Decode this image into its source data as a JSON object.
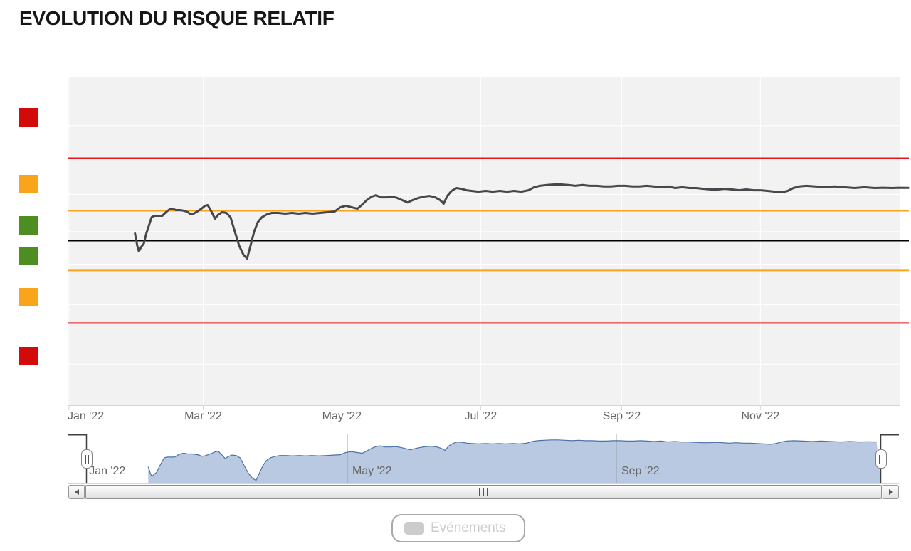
{
  "page": {
    "title": "EVOLUTION DU RISQUE RELATIF"
  },
  "legend": {
    "label": "Evénements"
  },
  "zone_indicators": [
    {
      "name": "very-high-risk-upper",
      "color": "#d20a0a"
    },
    {
      "name": "high-risk-upper",
      "color": "#f9a51b"
    },
    {
      "name": "moderate-risk-upper",
      "color": "#4e8d22"
    },
    {
      "name": "moderate-risk-lower",
      "color": "#4e8d22"
    },
    {
      "name": "high-risk-lower",
      "color": "#f9a51b"
    },
    {
      "name": "very-high-risk-lower",
      "color": "#d20a0a"
    }
  ],
  "chart_data": {
    "type": "line",
    "title": "EVOLUTION DU RISQUE RELATIF",
    "xlabel": "",
    "ylabel": "",
    "x_axis": {
      "unit": "day_of_year_2022",
      "grid": true,
      "ticks": [
        {
          "day": 0,
          "label": "Jan '22"
        },
        {
          "day": 59,
          "label": "Mar '22"
        },
        {
          "day": 120,
          "label": "May '22"
        },
        {
          "day": 181,
          "label": "Jul '22"
        },
        {
          "day": 243,
          "label": "Sep '22"
        },
        {
          "day": 304,
          "label": "Nov '22"
        }
      ]
    },
    "y_axis": {
      "scale": "log",
      "labels_visible": false,
      "grid": true,
      "gridline_values": [
        1.76,
        1.255,
        1.045,
        0.888,
        0.73,
        0.545
      ],
      "plot_lines": [
        {
          "value": 1.5,
          "color": "#e8151c",
          "name": "upper-red-threshold"
        },
        {
          "value": 1.158,
          "color": "#f9a51b",
          "name": "upper-orange-threshold"
        },
        {
          "value": 1.0,
          "color": "#000000",
          "name": "baseline"
        },
        {
          "value": 0.864,
          "color": "#f9a51b",
          "name": "lower-orange-threshold"
        },
        {
          "value": 0.667,
          "color": "#e8151c",
          "name": "lower-red-threshold"
        }
      ]
    },
    "series": [
      {
        "name": "risque-relatif",
        "color": "#47474c",
        "points": [
          [
            29,
            1.036
          ],
          [
            30,
            0.975
          ],
          [
            30.7,
            0.949
          ],
          [
            31.7,
            0.969
          ],
          [
            32.9,
            0.986
          ],
          [
            34,
            1.036
          ],
          [
            35,
            1.072
          ],
          [
            36.3,
            1.122
          ],
          [
            37.6,
            1.13
          ],
          [
            39.1,
            1.13
          ],
          [
            41,
            1.13
          ],
          [
            42.6,
            1.15
          ],
          [
            44.2,
            1.166
          ],
          [
            45.4,
            1.17
          ],
          [
            47,
            1.162
          ],
          [
            48.9,
            1.162
          ],
          [
            50.7,
            1.158
          ],
          [
            52.3,
            1.15
          ],
          [
            53.5,
            1.138
          ],
          [
            54.8,
            1.142
          ],
          [
            56.4,
            1.154
          ],
          [
            58.2,
            1.17
          ],
          [
            59.8,
            1.187
          ],
          [
            61,
            1.191
          ],
          [
            62.6,
            1.154
          ],
          [
            64.2,
            1.114
          ],
          [
            65.4,
            1.134
          ],
          [
            67.3,
            1.15
          ],
          [
            69.2,
            1.146
          ],
          [
            71,
            1.122
          ],
          [
            72.9,
            1.046
          ],
          [
            74.8,
            0.976
          ],
          [
            76.7,
            0.933
          ],
          [
            78.3,
            0.916
          ],
          [
            79.8,
            0.976
          ],
          [
            81.4,
            1.046
          ],
          [
            83,
            1.095
          ],
          [
            84.8,
            1.122
          ],
          [
            87,
            1.138
          ],
          [
            89.2,
            1.146
          ],
          [
            92,
            1.146
          ],
          [
            95,
            1.142
          ],
          [
            98,
            1.146
          ],
          [
            101,
            1.142
          ],
          [
            104,
            1.146
          ],
          [
            107,
            1.142
          ],
          [
            110.5,
            1.146
          ],
          [
            113.7,
            1.15
          ],
          [
            116.8,
            1.154
          ],
          [
            119.3,
            1.178
          ],
          [
            121.8,
            1.187
          ],
          [
            124.3,
            1.178
          ],
          [
            126.8,
            1.17
          ],
          [
            128.7,
            1.191
          ],
          [
            130.9,
            1.22
          ],
          [
            133.1,
            1.242
          ],
          [
            135,
            1.25
          ],
          [
            137.2,
            1.237
          ],
          [
            139.7,
            1.237
          ],
          [
            142.2,
            1.242
          ],
          [
            144.4,
            1.233
          ],
          [
            146.6,
            1.22
          ],
          [
            148.8,
            1.207
          ],
          [
            151,
            1.22
          ],
          [
            153.5,
            1.233
          ],
          [
            156,
            1.242
          ],
          [
            158.5,
            1.246
          ],
          [
            161,
            1.237
          ],
          [
            163.2,
            1.22
          ],
          [
            164.7,
            1.199
          ],
          [
            166.3,
            1.246
          ],
          [
            168.2,
            1.277
          ],
          [
            170.4,
            1.295
          ],
          [
            172.6,
            1.29
          ],
          [
            174.8,
            1.281
          ],
          [
            177,
            1.277
          ],
          [
            180,
            1.272
          ],
          [
            183.2,
            1.277
          ],
          [
            186.3,
            1.272
          ],
          [
            189.4,
            1.277
          ],
          [
            192.6,
            1.272
          ],
          [
            195.7,
            1.277
          ],
          [
            198.8,
            1.272
          ],
          [
            202,
            1.281
          ],
          [
            204.5,
            1.3
          ],
          [
            207,
            1.309
          ],
          [
            210.1,
            1.314
          ],
          [
            213.3,
            1.318
          ],
          [
            216.4,
            1.318
          ],
          [
            219.5,
            1.314
          ],
          [
            222.6,
            1.309
          ],
          [
            225.8,
            1.314
          ],
          [
            228.9,
            1.309
          ],
          [
            232,
            1.309
          ],
          [
            235.2,
            1.305
          ],
          [
            238.3,
            1.305
          ],
          [
            241.4,
            1.309
          ],
          [
            244.6,
            1.309
          ],
          [
            247.7,
            1.305
          ],
          [
            250.8,
            1.305
          ],
          [
            254,
            1.309
          ],
          [
            257.1,
            1.305
          ],
          [
            260.2,
            1.3
          ],
          [
            263.4,
            1.305
          ],
          [
            266.5,
            1.295
          ],
          [
            269.6,
            1.3
          ],
          [
            272.8,
            1.295
          ],
          [
            275.9,
            1.295
          ],
          [
            279,
            1.29
          ],
          [
            282.2,
            1.286
          ],
          [
            285.3,
            1.286
          ],
          [
            288.4,
            1.29
          ],
          [
            291.6,
            1.286
          ],
          [
            294.7,
            1.281
          ],
          [
            297.8,
            1.286
          ],
          [
            301,
            1.281
          ],
          [
            304.1,
            1.281
          ],
          [
            307.2,
            1.277
          ],
          [
            310.4,
            1.272
          ],
          [
            313.5,
            1.268
          ],
          [
            316,
            1.277
          ],
          [
            318.5,
            1.295
          ],
          [
            321,
            1.305
          ],
          [
            324.1,
            1.309
          ],
          [
            328.2,
            1.305
          ],
          [
            332.3,
            1.3
          ],
          [
            336.6,
            1.305
          ],
          [
            341,
            1.3
          ],
          [
            345.4,
            1.295
          ],
          [
            349.8,
            1.3
          ],
          [
            354.2,
            1.295
          ],
          [
            358,
            1.297
          ],
          [
            362,
            1.295
          ],
          [
            365,
            1.297
          ],
          [
            369,
            1.296
          ]
        ]
      }
    ],
    "navigator": {
      "area_fill": "#b9c9e1",
      "area_stroke": "#4a72a8",
      "separator_days": [
        120,
        243
      ],
      "labels": [
        {
          "day": 0,
          "label": "Jan '22"
        },
        {
          "day": 120,
          "label": "May '22"
        },
        {
          "day": 243,
          "label": "Sep '22"
        }
      ]
    }
  }
}
